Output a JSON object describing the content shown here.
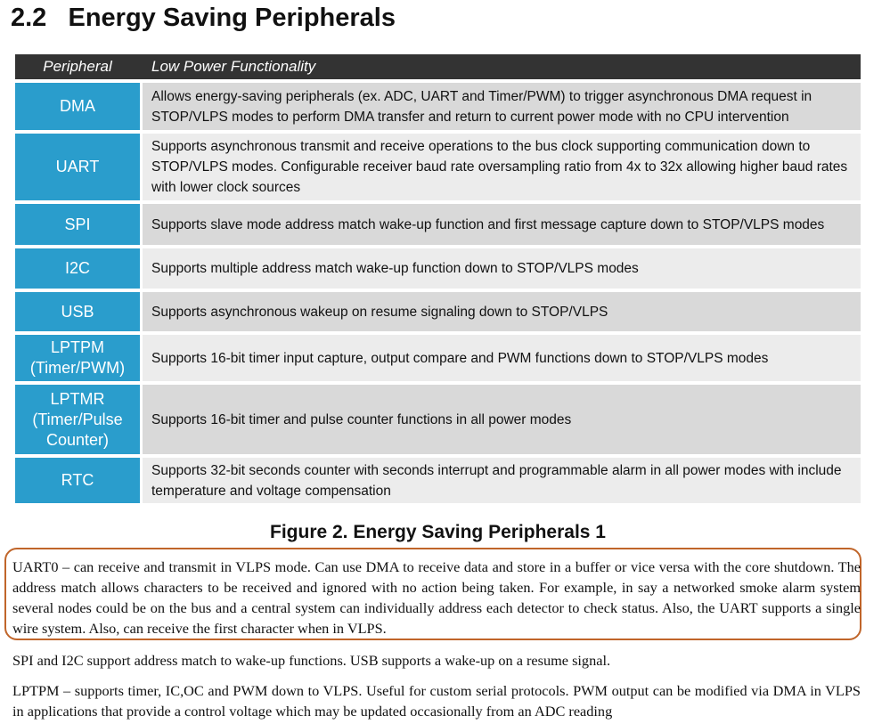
{
  "header": {
    "title": "2.2   Energy Saving Peripherals"
  },
  "table": {
    "columns": [
      "Peripheral",
      "Low Power Functionality"
    ],
    "rows": [
      [
        "DMA",
        "Allows energy-saving peripherals (ex. ADC, UART and Timer/PWM) to trigger asynchronous DMA request in STOP/VLPS modes to perform DMA transfer and return to current power mode with no CPU intervention"
      ],
      [
        "UART",
        "Supports asynchronous transmit and receive operations to the bus clock supporting communication down to STOP/VLPS modes. Configurable receiver baud rate oversampling ratio from 4x to 32x allowing higher baud rates with lower clock sources"
      ],
      [
        "SPI",
        "Supports slave mode address match wake-up function and first message capture down to STOP/VLPS modes"
      ],
      [
        "I2C",
        "Supports multiple address match wake-up function down to STOP/VLPS modes"
      ],
      [
        "USB",
        "Supports asynchronous wakeup on resume signaling down to STOP/VLPS"
      ],
      [
        "LPTPM (Timer/PWM)",
        "Supports 16-bit timer input capture, output compare and PWM functions down to STOP/VLPS modes"
      ],
      [
        "LPTMR (Timer/Pulse Counter)",
        "Supports 16-bit timer and pulse counter functions in all power modes"
      ],
      [
        "RTC",
        "Supports 32-bit seconds counter with seconds interrupt and programmable alarm in all power modes with include temperature and voltage compensation"
      ]
    ]
  },
  "caption": "Figure 2. Energy Saving Peripherals 1",
  "paragraphs": [
    "UART0 – can receive and transmit in VLPS mode. Can use DMA to receive data and store in a buffer or vice versa with the core shutdown. The address match allows characters to be received and ignored with no action being taken. For example, in say a networked smoke alarm system several nodes could be on the bus and a central system can individually address each detector to check status. Also, the UART supports a single wire system. Also, can receive the first character when in VLPS.",
    "SPI and I2C support address match to wake-up functions. USB supports a wake-up on a resume signal.",
    "LPTPM – supports timer, IC,OC and PWM down to VLPS. Useful for custom serial protocols. PWM output can be modified via DMA in VLPS in applications that provide a control voltage which may be updated occasionally from an ADC reading"
  ]
}
